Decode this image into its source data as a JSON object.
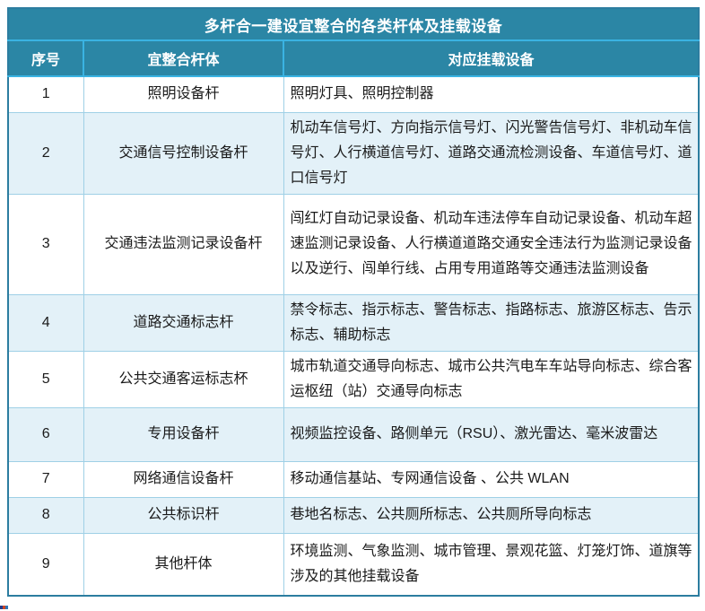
{
  "table": {
    "title": "多杆合一建设宜整合的各类杆体及挂载设备",
    "columns": [
      "序号",
      "宜整合杆体",
      "对应挂载设备"
    ],
    "rows": [
      {
        "num": "1",
        "pole": "照明设备杆",
        "devices": "照明灯具、照明控制器"
      },
      {
        "num": "2",
        "pole": "交通信号控制设备杆",
        "devices": "机动车信号灯、方向指示信号灯、闪光警告信号灯、非机动车信号灯、人行横道信号灯、道路交通流检测设备、车道信号灯、道口信号灯"
      },
      {
        "num": "3",
        "pole": "交通违法监测记录设备杆",
        "devices": "闯红灯自动记录设备、机动车违法停车自动记录设备、机动车超速监测记录设备、人行横道道路交通安全违法行为监测记录设备以及逆行、闯单行线、占用专用道路等交通违法监测设备"
      },
      {
        "num": "4",
        "pole": "道路交通标志杆",
        "devices": "禁令标志、指示标志、警告标志、指路标志、旅游区标志、告示标志、辅助标志"
      },
      {
        "num": "5",
        "pole": "公共交通客运标志杯",
        "devices": "城市轨道交通导向标志、城市公共汽电车车站导向标志、综合客运枢纽（站）交通导向标志"
      },
      {
        "num": "6",
        "pole": "专用设备杆",
        "devices": "视频监控设备、路侧单元（RSU）、激光雷达、毫米波雷达"
      },
      {
        "num": "7",
        "pole": "网络通信设备杆",
        "devices": "移动通信基站、专网通信设备 、公共 WLAN"
      },
      {
        "num": "8",
        "pole": "公共标识杆",
        "devices": "巷地名标志、公共厕所标志、公共厕所导向标志"
      },
      {
        "num": "9",
        "pole": "其他杆体",
        "devices": "环境监测、气象监测、城市管理、景观花篮、灯笼灯饰、道旗等涉及的其他挂载设备"
      }
    ]
  },
  "colors": {
    "header_bg": "#2b86a5",
    "header_text": "#ffffff",
    "header_divider": "#3ab3e2",
    "frame_border": "#2c7da0",
    "cell_border": "#9fd0e6",
    "row_alt_bg": "#e3f1f8",
    "row_bg": "#ffffff",
    "body_text": "#1a1a1a"
  }
}
